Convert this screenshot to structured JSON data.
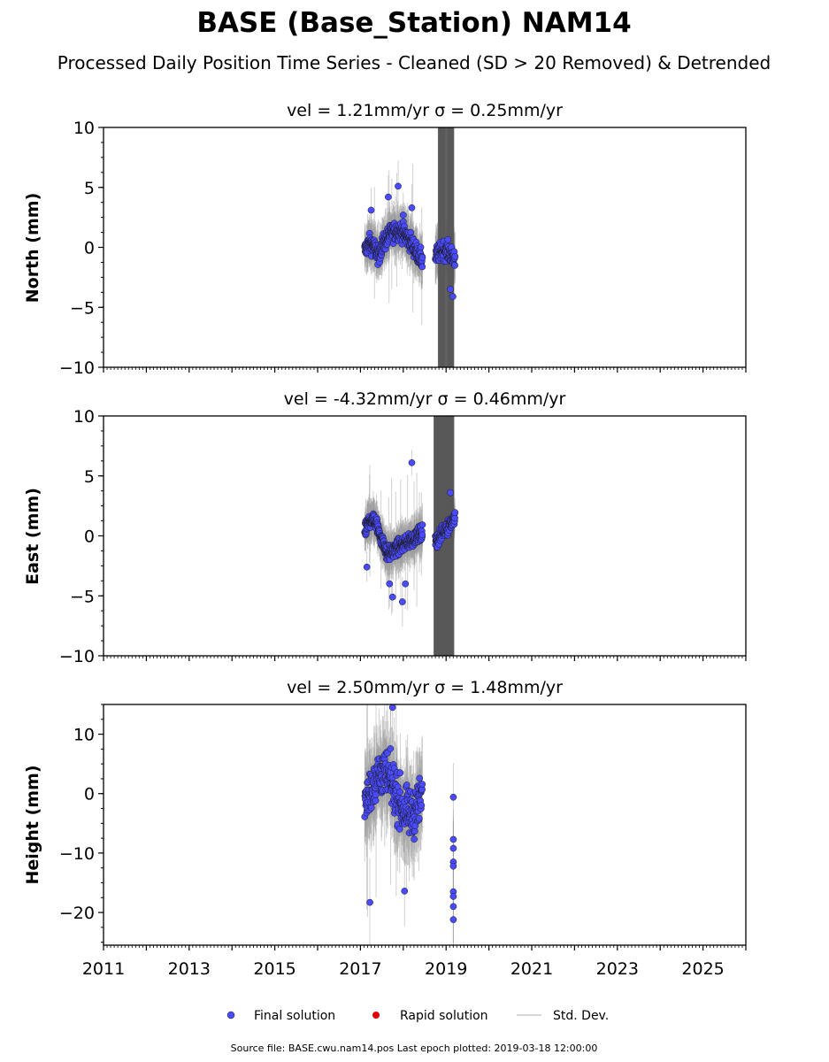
{
  "title": "BASE (Base_Station) NAM14",
  "subtitle": "Processed Daily Position Time Series - Cleaned (SD > 20 Removed) & Detrended",
  "chart_data": [
    {
      "type": "scatter",
      "panel": "north",
      "title": "vel = 1.21mm/yr   σ = 0.25mm/yr",
      "ylabel": "North (mm)",
      "xlim": [
        2011,
        2026
      ],
      "ylim": [
        -10,
        10
      ],
      "yticks": [
        -10,
        -5,
        0,
        5,
        10
      ],
      "ytick_labels": [
        "−10",
        "−5",
        "0",
        "5",
        "10"
      ],
      "outliers": [
        [
          2017.25,
          3.1
        ],
        [
          2017.65,
          4.2
        ],
        [
          2017.88,
          5.1
        ],
        [
          2018.2,
          3.3
        ],
        [
          2019.1,
          -3.5
        ],
        [
          2019.16,
          -4.1
        ],
        [
          2018.0,
          2.7
        ]
      ],
      "wide_bands": [
        [
          2018.82,
          2019.18
        ]
      ]
    },
    {
      "type": "scatter",
      "panel": "east",
      "title": "vel = -4.32mm/yr   σ = 0.46mm/yr",
      "ylabel": "East (mm)",
      "xlim": [
        2011,
        2026
      ],
      "ylim": [
        -10,
        10
      ],
      "yticks": [
        -10,
        -5,
        0,
        5,
        10
      ],
      "ytick_labels": [
        "−10",
        "−5",
        "0",
        "5",
        "10"
      ],
      "outliers": [
        [
          2018.2,
          6.1
        ],
        [
          2017.75,
          -5.1
        ],
        [
          2017.98,
          -5.5
        ],
        [
          2018.05,
          -4.0
        ],
        [
          2017.68,
          -4.0
        ],
        [
          2017.15,
          -2.6
        ],
        [
          2019.1,
          3.6
        ]
      ],
      "wide_bands": [
        [
          2018.72,
          2019.18
        ]
      ]
    },
    {
      "type": "scatter",
      "panel": "height",
      "title": "vel = 2.50mm/yr   σ = 1.48mm/yr",
      "ylabel": "Height (mm)",
      "xlim": [
        2011,
        2026
      ],
      "ylim": [
        -25.5,
        15
      ],
      "yticks": [
        -20,
        -10,
        0,
        10
      ],
      "ytick_labels": [
        "−20",
        "−10",
        "0",
        "10"
      ],
      "outliers": [
        [
          2017.22,
          -18.3
        ],
        [
          2018.03,
          -16.4
        ],
        [
          2017.75,
          14.5
        ],
        [
          2019.17,
          -0.6
        ],
        [
          2019.17,
          -7.7
        ],
        [
          2019.17,
          -9.2
        ],
        [
          2019.17,
          -11.5
        ],
        [
          2019.17,
          -12.2
        ],
        [
          2019.17,
          -16.5
        ],
        [
          2019.17,
          -17.3
        ],
        [
          2019.17,
          -19.0
        ],
        [
          2019.17,
          -21.2
        ]
      ],
      "wide_bands": []
    }
  ],
  "xaxis": {
    "ticks": [
      2011,
      2013,
      2015,
      2017,
      2019,
      2021,
      2023,
      2025
    ],
    "labels": [
      "2011",
      "2013",
      "2015",
      "2017",
      "2019",
      "2021",
      "2023",
      "2025"
    ]
  },
  "legend": {
    "items": [
      {
        "label": "Final solution",
        "color": "#4a4aff"
      },
      {
        "label": "Rapid solution",
        "color": "#e00000"
      },
      {
        "label": "Std. Dev.",
        "color": "#cccccc"
      }
    ]
  },
  "footer": "Source file: BASE.cwu.nam14.pos  Last epoch plotted: 2019-03-18 12:00:00",
  "colors": {
    "final": "#4a4aff",
    "rapid": "#e00000",
    "stddev": "#bdbdbd",
    "band": "#5a5a5a"
  }
}
